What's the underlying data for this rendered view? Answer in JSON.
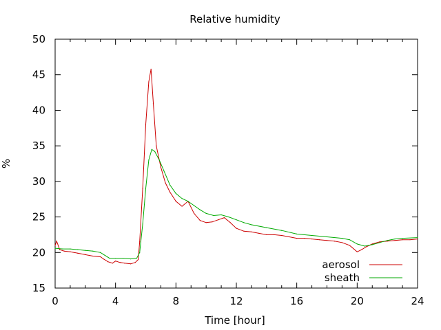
{
  "chart_data": {
    "type": "line",
    "title": "Relative humidity",
    "xlabel": "Time [hour]",
    "ylabel": "%",
    "xlim": [
      0,
      24
    ],
    "ylim": [
      15,
      50
    ],
    "x_ticks": [
      0,
      4,
      8,
      12,
      16,
      20,
      24
    ],
    "y_ticks": [
      15,
      20,
      25,
      30,
      35,
      40,
      45,
      50
    ],
    "grid": false,
    "legend_position": "bottom-right",
    "series": [
      {
        "name": "aerosol",
        "color": "#cc0000",
        "x": [
          0,
          0.1,
          0.3,
          0.6,
          1.0,
          1.5,
          2.0,
          2.5,
          3.0,
          3.2,
          3.5,
          3.8,
          4.0,
          4.3,
          4.6,
          5.0,
          5.3,
          5.5,
          5.6,
          5.8,
          6.0,
          6.2,
          6.35,
          6.5,
          6.7,
          7.0,
          7.3,
          7.6,
          8.0,
          8.4,
          8.8,
          9.2,
          9.6,
          10.0,
          10.4,
          10.8,
          11.2,
          11.6,
          12.0,
          12.5,
          13.0,
          13.5,
          14.0,
          14.5,
          15.0,
          15.5,
          16.0,
          16.5,
          17.0,
          17.5,
          18.0,
          18.5,
          19.0,
          19.5,
          20.0,
          20.3,
          20.6,
          21.0,
          21.5,
          22.0,
          22.5,
          23.0,
          23.5,
          24.0
        ],
        "y": [
          21.0,
          21.6,
          20.4,
          20.2,
          20.1,
          19.9,
          19.7,
          19.5,
          19.4,
          19.1,
          18.7,
          18.5,
          18.8,
          18.6,
          18.5,
          18.4,
          18.6,
          19.0,
          21.5,
          29.0,
          38.0,
          44.0,
          45.8,
          41.0,
          35.0,
          32.0,
          29.8,
          28.5,
          27.2,
          26.5,
          27.2,
          25.5,
          24.5,
          24.2,
          24.3,
          24.6,
          24.9,
          24.2,
          23.4,
          23.0,
          22.9,
          22.7,
          22.5,
          22.5,
          22.4,
          22.2,
          22.0,
          22.0,
          21.9,
          21.8,
          21.7,
          21.6,
          21.4,
          21.0,
          20.1,
          20.4,
          20.8,
          21.2,
          21.5,
          21.6,
          21.7,
          21.8,
          21.8,
          21.9
        ]
      },
      {
        "name": "sheath",
        "color": "#00aa00",
        "x": [
          0,
          0.5,
          1.0,
          1.5,
          2.0,
          2.5,
          3.0,
          3.3,
          3.6,
          4.0,
          4.5,
          5.0,
          5.4,
          5.6,
          5.8,
          6.0,
          6.2,
          6.4,
          6.6,
          6.9,
          7.2,
          7.6,
          8.0,
          8.4,
          8.8,
          9.2,
          9.6,
          10.0,
          10.5,
          11.0,
          11.5,
          12.0,
          12.5,
          13.0,
          14.0,
          15.0,
          16.0,
          17.0,
          18.0,
          19.0,
          19.5,
          20.0,
          20.5,
          21.0,
          21.5,
          22.0,
          22.5,
          23.0,
          24.0
        ],
        "y": [
          20.6,
          20.5,
          20.5,
          20.4,
          20.3,
          20.2,
          20.0,
          19.6,
          19.2,
          19.2,
          19.2,
          19.1,
          19.2,
          20.0,
          24.0,
          29.0,
          33.0,
          34.5,
          34.2,
          33.0,
          31.5,
          29.5,
          28.3,
          27.6,
          27.2,
          26.6,
          26.0,
          25.5,
          25.2,
          25.3,
          25.0,
          24.6,
          24.2,
          23.9,
          23.5,
          23.1,
          22.6,
          22.4,
          22.2,
          22.0,
          21.8,
          21.2,
          20.9,
          21.1,
          21.4,
          21.7,
          21.9,
          22.0,
          22.1
        ]
      }
    ]
  }
}
